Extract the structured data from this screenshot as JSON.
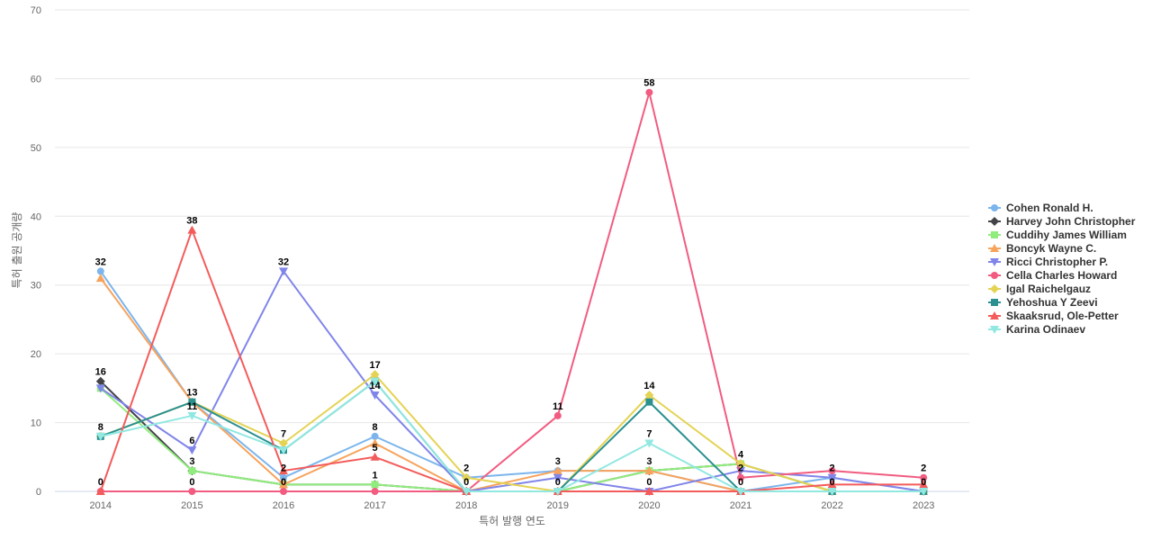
{
  "chart_data": {
    "type": "line",
    "title": "",
    "xlabel": "특허 발행 연도",
    "ylabel": "특허 출원 공개량",
    "ylim": [
      0,
      70
    ],
    "yticks": [
      0,
      10,
      20,
      30,
      40,
      50,
      60,
      70
    ],
    "grid": true,
    "legend_position": "right",
    "categories": [
      "2014",
      "2015",
      "2016",
      "2017",
      "2018",
      "2019",
      "2020",
      "2021",
      "2022",
      "2023"
    ],
    "series": [
      {
        "name": "Cohen Ronald H.",
        "color": "#7cb5ec",
        "marker": "circle",
        "values": [
          32,
          13,
          2,
          8,
          2,
          3,
          3,
          0,
          2,
          0
        ]
      },
      {
        "name": "Harvey John Christopher",
        "color": "#434348",
        "marker": "diamond",
        "values": [
          16,
          3,
          1,
          1,
          0,
          0,
          3,
          4,
          0,
          0
        ]
      },
      {
        "name": "Cuddihy James William",
        "color": "#90ed7d",
        "marker": "square",
        "values": [
          15,
          3,
          1,
          1,
          0,
          0,
          3,
          4,
          0,
          0
        ]
      },
      {
        "name": "Boncyk Wayne C.",
        "color": "#f7a35c",
        "marker": "triangle",
        "values": [
          31,
          13,
          1,
          7,
          0,
          3,
          3,
          0,
          0,
          0
        ]
      },
      {
        "name": "Ricci Christopher P.",
        "color": "#8085e9",
        "marker": "triangle-down",
        "values": [
          15,
          6,
          32,
          14,
          0,
          2,
          0,
          3,
          2,
          0
        ]
      },
      {
        "name": "Cella Charles Howard",
        "color": "#f15c80",
        "marker": "circle",
        "values": [
          0,
          0,
          0,
          0,
          0,
          11,
          58,
          2,
          3,
          2
        ]
      },
      {
        "name": "Igal Raichelgauz",
        "color": "#e4d354",
        "marker": "diamond",
        "values": [
          8,
          13,
          7,
          17,
          2,
          0,
          14,
          4,
          0,
          0
        ]
      },
      {
        "name": "Yehoshua Y Zeevi",
        "color": "#2b908f",
        "marker": "square",
        "values": [
          8,
          13,
          6,
          16,
          0,
          0,
          13,
          0,
          0,
          0
        ]
      },
      {
        "name": "Skaaksrud, Ole-Petter",
        "color": "#f45b5b",
        "marker": "triangle",
        "values": [
          0,
          38,
          3,
          5,
          0,
          0,
          0,
          0,
          1,
          1
        ]
      },
      {
        "name": "Karina Odinaev",
        "color": "#91e8e1",
        "marker": "triangle-down",
        "values": [
          8,
          11,
          6,
          16,
          0,
          0,
          7,
          0,
          0,
          0
        ]
      }
    ],
    "data_labels": [
      {
        "x": "2014",
        "text": "32",
        "value": 32
      },
      {
        "x": "2014",
        "text": "16",
        "value": 16
      },
      {
        "x": "2014",
        "text": "8",
        "value": 8
      },
      {
        "x": "2014",
        "text": "0",
        "value": 0
      },
      {
        "x": "2015",
        "text": "38",
        "value": 38
      },
      {
        "x": "2015",
        "text": "13",
        "value": 13
      },
      {
        "x": "2015",
        "text": "11",
        "value": 11
      },
      {
        "x": "2015",
        "text": "6",
        "value": 6
      },
      {
        "x": "2015",
        "text": "3",
        "value": 3
      },
      {
        "x": "2015",
        "text": "0",
        "value": 0
      },
      {
        "x": "2016",
        "text": "32",
        "value": 32
      },
      {
        "x": "2016",
        "text": "7",
        "value": 7
      },
      {
        "x": "2016",
        "text": "2",
        "value": 2
      },
      {
        "x": "2016",
        "text": "0",
        "value": 0
      },
      {
        "x": "2017",
        "text": "17",
        "value": 17
      },
      {
        "x": "2017",
        "text": "14",
        "value": 14
      },
      {
        "x": "2017",
        "text": "8",
        "value": 8
      },
      {
        "x": "2017",
        "text": "5",
        "value": 5
      },
      {
        "x": "2017",
        "text": "1",
        "value": 1
      },
      {
        "x": "2018",
        "text": "2",
        "value": 2
      },
      {
        "x": "2018",
        "text": "0",
        "value": 0
      },
      {
        "x": "2019",
        "text": "11",
        "value": 11
      },
      {
        "x": "2019",
        "text": "3",
        "value": 3
      },
      {
        "x": "2019",
        "text": "0",
        "value": 0
      },
      {
        "x": "2020",
        "text": "58",
        "value": 58
      },
      {
        "x": "2020",
        "text": "14",
        "value": 14
      },
      {
        "x": "2020",
        "text": "7",
        "value": 7
      },
      {
        "x": "2020",
        "text": "3",
        "value": 3
      },
      {
        "x": "2020",
        "text": "0",
        "value": 0
      },
      {
        "x": "2021",
        "text": "4",
        "value": 4
      },
      {
        "x": "2021",
        "text": "2",
        "value": 2
      },
      {
        "x": "2021",
        "text": "0",
        "value": 0
      },
      {
        "x": "2022",
        "text": "2",
        "value": 2
      },
      {
        "x": "2022",
        "text": "0",
        "value": 0
      },
      {
        "x": "2023",
        "text": "2",
        "value": 2
      },
      {
        "x": "2023",
        "text": "0",
        "value": 0
      }
    ]
  }
}
